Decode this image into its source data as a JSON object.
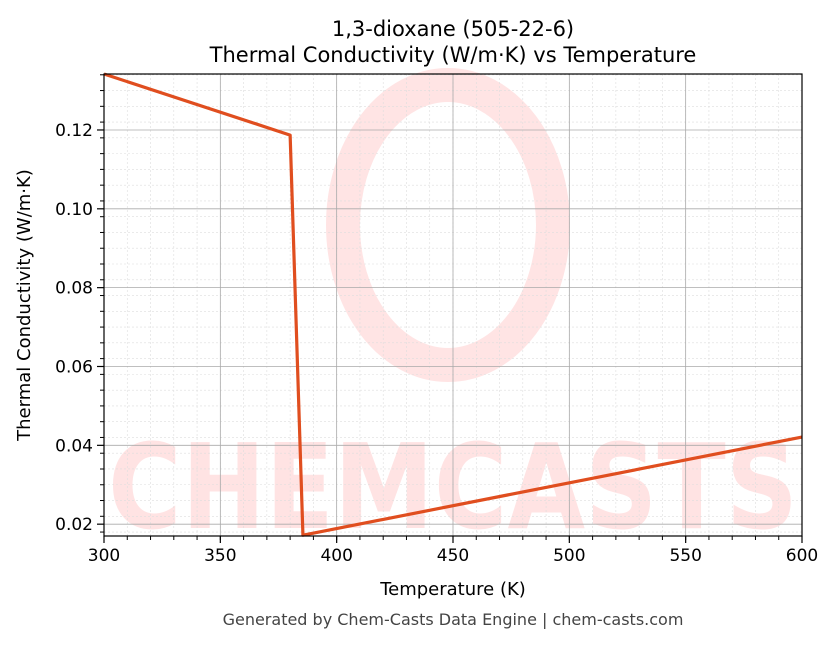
{
  "chart_data": {
    "type": "line",
    "title": "1,3-dioxane (505-22-6)",
    "subtitle": "Thermal Conductivity (W/m·K) vs Temperature",
    "xlabel": "Temperature (K)",
    "ylabel": "Thermal Conductivity (W/m·K)",
    "xlim": [
      300,
      600
    ],
    "ylim": [
      0.017,
      0.1342
    ],
    "xticks": [
      300,
      350,
      400,
      450,
      500,
      550,
      600
    ],
    "xtick_labels": [
      "300",
      "350",
      "400",
      "450",
      "500",
      "550",
      "600"
    ],
    "yticks": [
      0.02,
      0.04,
      0.06,
      0.08,
      0.1,
      0.12
    ],
    "ytick_labels": [
      "0.02",
      "0.04",
      "0.06",
      "0.08",
      "0.10",
      "0.12"
    ],
    "grid": true,
    "series": [
      {
        "color": "#e04e1f",
        "x": [
          300,
          380,
          385.5,
          600
        ],
        "y": [
          0.1342,
          0.1187,
          0.0172,
          0.0421
        ]
      }
    ]
  },
  "watermark": "CHEMCASTS",
  "footer": "Generated by Chem-Casts Data Engine | chem-casts.com"
}
